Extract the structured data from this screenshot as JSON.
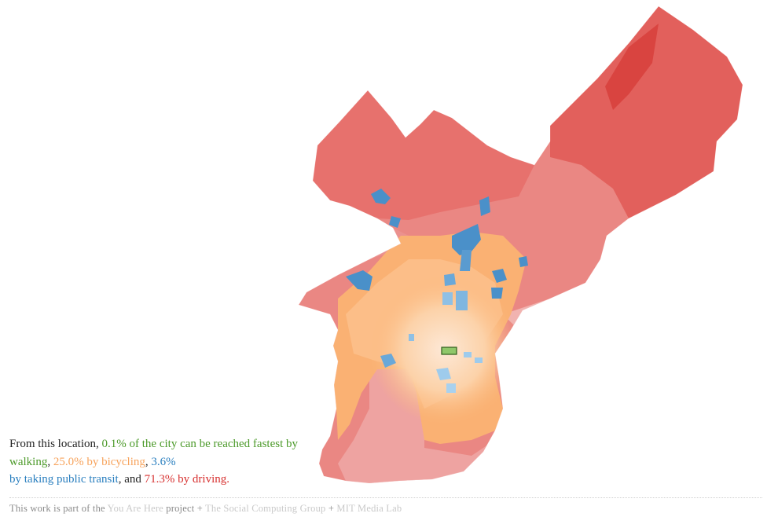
{
  "colors": {
    "walking": "#4c9a2a",
    "bicycling": "#f7a35c",
    "transit": "#2a7fbf",
    "driving": "#d7302f",
    "selected_tract": "#8fc76a"
  },
  "legend": {
    "lead": "From this location,",
    "walk_pct": "0.1%",
    "walk_text": "of the city can be reached fastest by walking",
    "sep1": ",",
    "bike_pct": "25.0%",
    "bike_text": "by bicycling",
    "sep2": ",",
    "transit_pct": "3.6%",
    "transit_text": "by taking public transit",
    "sep3": ", and",
    "drive_pct": "71.3%",
    "drive_text": "by driving."
  },
  "footer": {
    "prefix": "This work is part of the",
    "link_project": "You Are Here",
    "project_word": "project",
    "plus1": "+",
    "link_group": "The Social Computing Group",
    "plus2": "+",
    "link_lab": "MIT Media Lab"
  }
}
